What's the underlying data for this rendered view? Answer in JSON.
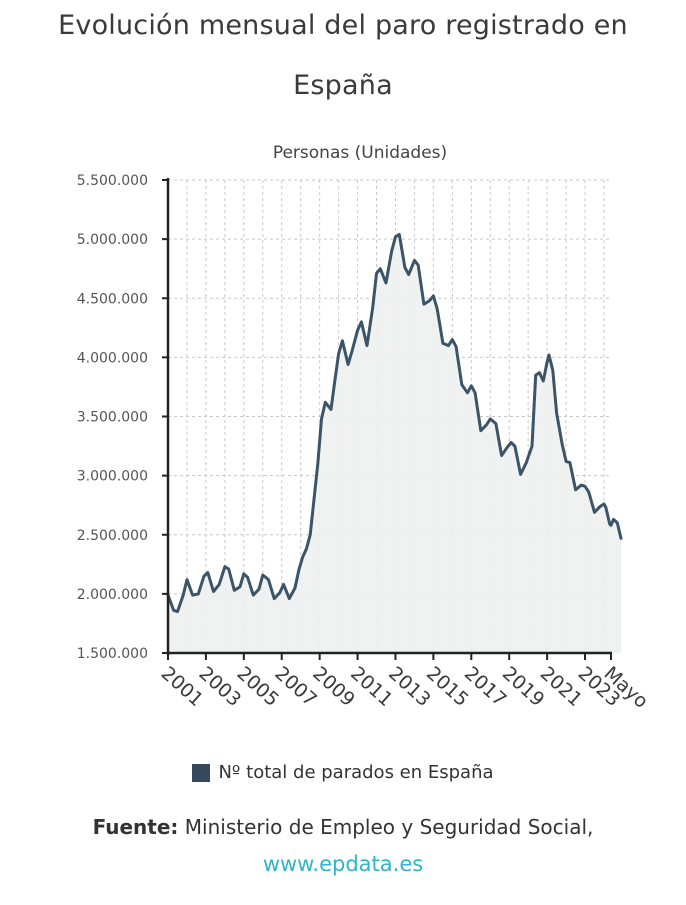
{
  "title_lines": [
    "Evolución mensual del paro registrado en",
    "España"
  ],
  "chart_data": {
    "type": "area",
    "subtitle": "Personas (Unidades)",
    "ylabel": "Personas (Unidades)",
    "xlabel": "",
    "ylim": [
      1500000,
      5500000
    ],
    "xlim": [
      2001.0,
      2024.37
    ],
    "yticks": [
      {
        "value": 1500000,
        "label": "1.500.000"
      },
      {
        "value": 2000000,
        "label": "2.000.000"
      },
      {
        "value": 2500000,
        "label": "2.500.000"
      },
      {
        "value": 3000000,
        "label": "3.000.000"
      },
      {
        "value": 3500000,
        "label": "3.500.000"
      },
      {
        "value": 4000000,
        "label": "4.000.000"
      },
      {
        "value": 4500000,
        "label": "4.500.000"
      },
      {
        "value": 5000000,
        "label": "5.000.000"
      },
      {
        "value": 5500000,
        "label": "5.500.000"
      }
    ],
    "xticks": [
      {
        "value": 2001,
        "label": "2001"
      },
      {
        "value": 2003,
        "label": "2003"
      },
      {
        "value": 2005,
        "label": "2005"
      },
      {
        "value": 2007,
        "label": "2007"
      },
      {
        "value": 2009,
        "label": "2009"
      },
      {
        "value": 2011,
        "label": "2011"
      },
      {
        "value": 2013,
        "label": "2013"
      },
      {
        "value": 2015,
        "label": "2015"
      },
      {
        "value": 2017,
        "label": "2017"
      },
      {
        "value": 2019,
        "label": "2019"
      },
      {
        "value": 2021,
        "label": "2021"
      },
      {
        "value": 2023,
        "label": "2023"
      },
      {
        "value": 2024.37,
        "label": "Mayo"
      }
    ],
    "vgrid": [
      2001,
      2002,
      2003,
      2004,
      2005,
      2006,
      2007,
      2008,
      2009,
      2010,
      2011,
      2012,
      2013,
      2014,
      2015,
      2016,
      2017,
      2018,
      2019,
      2020,
      2021,
      2022,
      2023,
      2024
    ],
    "grid": true,
    "legend_position": "bottom",
    "series": [
      {
        "name": "Nº total de parados en España",
        "color": "#3b5468",
        "fill": "#eef0f0",
        "points": [
          [
            2001.0,
            1990000
          ],
          [
            2001.3,
            1860000
          ],
          [
            2001.5,
            1850000
          ],
          [
            2001.8,
            1990000
          ],
          [
            2002.0,
            2120000
          ],
          [
            2002.3,
            1990000
          ],
          [
            2002.6,
            2000000
          ],
          [
            2002.9,
            2150000
          ],
          [
            2003.1,
            2180000
          ],
          [
            2003.4,
            2020000
          ],
          [
            2003.7,
            2080000
          ],
          [
            2004.0,
            2230000
          ],
          [
            2004.2,
            2210000
          ],
          [
            2004.5,
            2030000
          ],
          [
            2004.8,
            2060000
          ],
          [
            2005.0,
            2170000
          ],
          [
            2005.2,
            2140000
          ],
          [
            2005.5,
            1990000
          ],
          [
            2005.8,
            2040000
          ],
          [
            2006.0,
            2160000
          ],
          [
            2006.3,
            2120000
          ],
          [
            2006.6,
            1960000
          ],
          [
            2006.9,
            2010000
          ],
          [
            2007.1,
            2080000
          ],
          [
            2007.4,
            1960000
          ],
          [
            2007.7,
            2050000
          ],
          [
            2007.9,
            2200000
          ],
          [
            2008.1,
            2310000
          ],
          [
            2008.3,
            2380000
          ],
          [
            2008.5,
            2500000
          ],
          [
            2008.7,
            2800000
          ],
          [
            2008.9,
            3100000
          ],
          [
            2009.1,
            3480000
          ],
          [
            2009.3,
            3620000
          ],
          [
            2009.6,
            3560000
          ],
          [
            2009.8,
            3800000
          ],
          [
            2010.0,
            4030000
          ],
          [
            2010.2,
            4140000
          ],
          [
            2010.5,
            3940000
          ],
          [
            2010.7,
            4050000
          ],
          [
            2011.0,
            4230000
          ],
          [
            2011.2,
            4300000
          ],
          [
            2011.5,
            4100000
          ],
          [
            2011.8,
            4420000
          ],
          [
            2012.0,
            4710000
          ],
          [
            2012.2,
            4750000
          ],
          [
            2012.5,
            4630000
          ],
          [
            2012.8,
            4900000
          ],
          [
            2013.0,
            5020000
          ],
          [
            2013.2,
            5040000
          ],
          [
            2013.5,
            4760000
          ],
          [
            2013.7,
            4700000
          ],
          [
            2014.0,
            4820000
          ],
          [
            2014.2,
            4780000
          ],
          [
            2014.5,
            4450000
          ],
          [
            2014.8,
            4480000
          ],
          [
            2015.0,
            4520000
          ],
          [
            2015.2,
            4410000
          ],
          [
            2015.5,
            4120000
          ],
          [
            2015.8,
            4100000
          ],
          [
            2016.0,
            4150000
          ],
          [
            2016.2,
            4090000
          ],
          [
            2016.5,
            3770000
          ],
          [
            2016.8,
            3700000
          ],
          [
            2017.0,
            3760000
          ],
          [
            2017.2,
            3700000
          ],
          [
            2017.5,
            3380000
          ],
          [
            2017.8,
            3430000
          ],
          [
            2018.0,
            3480000
          ],
          [
            2018.3,
            3440000
          ],
          [
            2018.6,
            3170000
          ],
          [
            2018.9,
            3240000
          ],
          [
            2019.1,
            3280000
          ],
          [
            2019.3,
            3250000
          ],
          [
            2019.6,
            3010000
          ],
          [
            2019.9,
            3110000
          ],
          [
            2020.2,
            3250000
          ],
          [
            2020.4,
            3850000
          ],
          [
            2020.6,
            3870000
          ],
          [
            2020.8,
            3800000
          ],
          [
            2021.0,
            3960000
          ],
          [
            2021.1,
            4020000
          ],
          [
            2021.3,
            3890000
          ],
          [
            2021.5,
            3530000
          ],
          [
            2021.8,
            3260000
          ],
          [
            2022.0,
            3120000
          ],
          [
            2022.2,
            3110000
          ],
          [
            2022.5,
            2880000
          ],
          [
            2022.8,
            2920000
          ],
          [
            2023.0,
            2910000
          ],
          [
            2023.2,
            2860000
          ],
          [
            2023.5,
            2690000
          ],
          [
            2023.8,
            2740000
          ],
          [
            2024.0,
            2760000
          ],
          [
            2024.1,
            2730000
          ],
          [
            2024.3,
            2590000
          ],
          [
            2024.37,
            2580000
          ],
          [
            2024.5,
            2630000
          ],
          [
            2024.7,
            2600000
          ],
          [
            2024.9,
            2470000
          ]
        ]
      }
    ]
  },
  "legend_label": "Nº total de parados en España",
  "source": {
    "label": "Fuente:",
    "text": " Ministerio de Empleo y Seguridad Social,",
    "url": "www.epdata.es"
  }
}
